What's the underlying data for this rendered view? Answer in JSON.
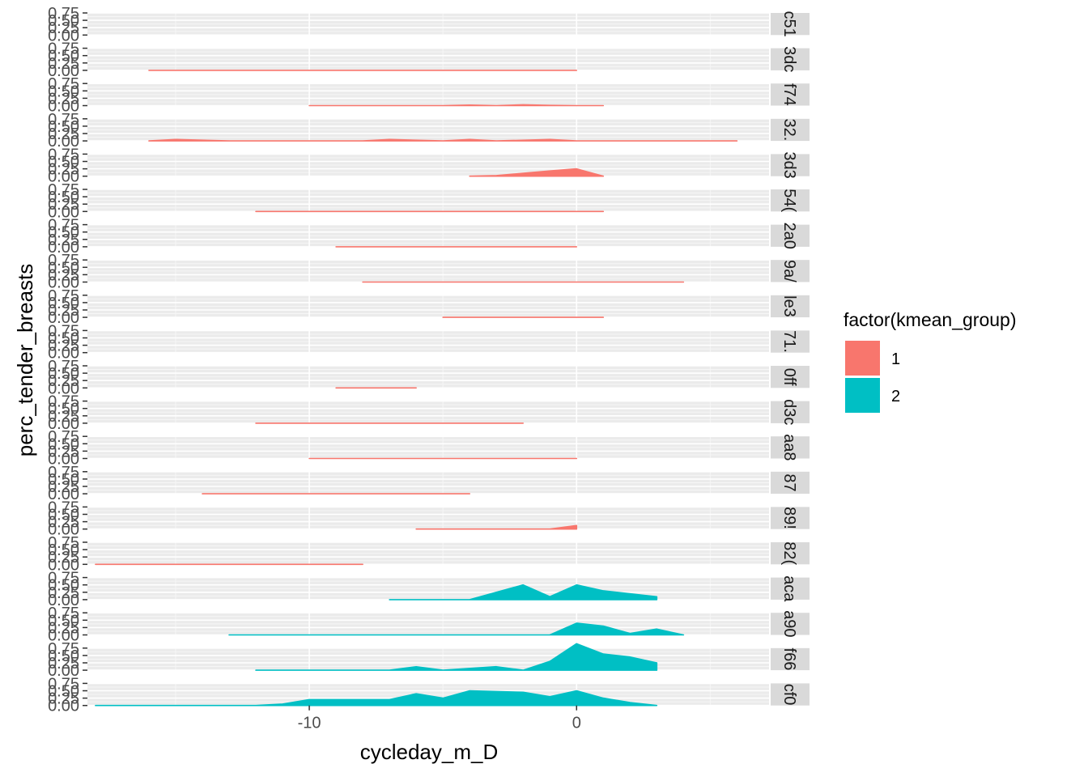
{
  "chart_data": {
    "type": "area",
    "facet_layout": "rows",
    "x_label": "cycleday_m_D",
    "y_label": "perc_tender_breasts",
    "x_ticks": [
      -10,
      0
    ],
    "x_tick_labels": [
      "-10",
      "0"
    ],
    "y_ticks": [
      0,
      0.25,
      0.5,
      0.75
    ],
    "y_tick_labels": [
      "0.00",
      "0.25",
      "0.50",
      "0.75"
    ],
    "xlim": [
      -18.3,
      7.2
    ],
    "ylim": [
      0,
      0.75
    ],
    "grid": true,
    "legend": {
      "title": "factor(kmean_group)",
      "position": "right",
      "entries": [
        {
          "label": "1",
          "color": "#F8766D"
        },
        {
          "label": "2",
          "color": "#00BFC4"
        }
      ]
    },
    "panels": [
      {
        "strip": "c51",
        "group": "1",
        "x": [],
        "y": []
      },
      {
        "strip": "3dc",
        "group": "1",
        "x": [
          -16,
          0
        ],
        "y": [
          0,
          0
        ]
      },
      {
        "strip": "f74",
        "group": "1",
        "x": [
          -10,
          -5,
          -4,
          -3,
          -2,
          -1,
          0,
          1
        ],
        "y": [
          0,
          0,
          0.02,
          0,
          0.03,
          0.01,
          0,
          0
        ]
      },
      {
        "strip": "32.",
        "group": "1",
        "x": [
          -16,
          -15,
          -13,
          -8,
          -7,
          -5,
          -4,
          -3,
          -1,
          0,
          6
        ],
        "y": [
          0,
          0.05,
          0,
          0,
          0.05,
          0,
          0.05,
          0,
          0.05,
          0,
          0
        ]
      },
      {
        "strip": "3d3",
        "group": "1",
        "x": [
          -4,
          -3,
          -2,
          -1,
          0,
          1
        ],
        "y": [
          0,
          0.02,
          0.1,
          0.18,
          0.25,
          0
        ]
      },
      {
        "strip": "54(",
        "group": "1",
        "x": [
          -12,
          1
        ],
        "y": [
          0,
          0
        ]
      },
      {
        "strip": "2a0",
        "group": "1",
        "x": [
          -9,
          0
        ],
        "y": [
          0,
          0
        ]
      },
      {
        "strip": "9a/",
        "group": "1",
        "x": [
          -8,
          4
        ],
        "y": [
          0,
          0
        ]
      },
      {
        "strip": "le3",
        "group": "1",
        "x": [
          -5,
          1
        ],
        "y": [
          0,
          0
        ]
      },
      {
        "strip": "71.",
        "group": "1",
        "x": [],
        "y": []
      },
      {
        "strip": "0ff",
        "group": "1",
        "x": [
          -9,
          -6
        ],
        "y": [
          0,
          0
        ]
      },
      {
        "strip": "d3c",
        "group": "1",
        "x": [
          -12,
          -2
        ],
        "y": [
          0,
          0
        ]
      },
      {
        "strip": "aa8",
        "group": "1",
        "x": [
          -10,
          0
        ],
        "y": [
          0,
          0
        ]
      },
      {
        "strip": "87",
        "group": "1",
        "x": [
          -14,
          -4
        ],
        "y": [
          0,
          0
        ]
      },
      {
        "strip": "89!",
        "group": "1",
        "x": [
          -6,
          -1,
          0
        ],
        "y": [
          0,
          0,
          0.12
        ]
      },
      {
        "strip": "82(",
        "group": "1",
        "x": [
          -18,
          -8
        ],
        "y": [
          0,
          0
        ]
      },
      {
        "strip": "aca",
        "group": "2",
        "x": [
          -7,
          -4,
          -3,
          -2,
          -1,
          0,
          1,
          3
        ],
        "y": [
          0,
          0,
          0.25,
          0.5,
          0.1,
          0.5,
          0.3,
          0.1
        ]
      },
      {
        "strip": "a90",
        "group": "2",
        "x": [
          -13,
          -1,
          0,
          1,
          2,
          3,
          4
        ],
        "y": [
          0,
          0,
          0.4,
          0.3,
          0.05,
          0.2,
          0
        ]
      },
      {
        "strip": "f66",
        "group": "2",
        "x": [
          -12,
          -7,
          -6,
          -5,
          -3,
          -2,
          -1,
          0,
          1,
          2,
          3
        ],
        "y": [
          0,
          0,
          0.12,
          0,
          0.12,
          0,
          0.3,
          0.9,
          0.55,
          0.45,
          0.25
        ]
      },
      {
        "strip": "cf0",
        "group": "2",
        "x": [
          -18,
          -12,
          -11,
          -10,
          -8,
          -7,
          -6,
          -5,
          -4,
          -2,
          -1,
          0,
          1,
          2,
          3
        ],
        "y": [
          0,
          0,
          0.05,
          0.2,
          0.2,
          0.2,
          0.4,
          0.25,
          0.5,
          0.45,
          0.3,
          0.5,
          0.25,
          0.1,
          0
        ]
      }
    ]
  }
}
